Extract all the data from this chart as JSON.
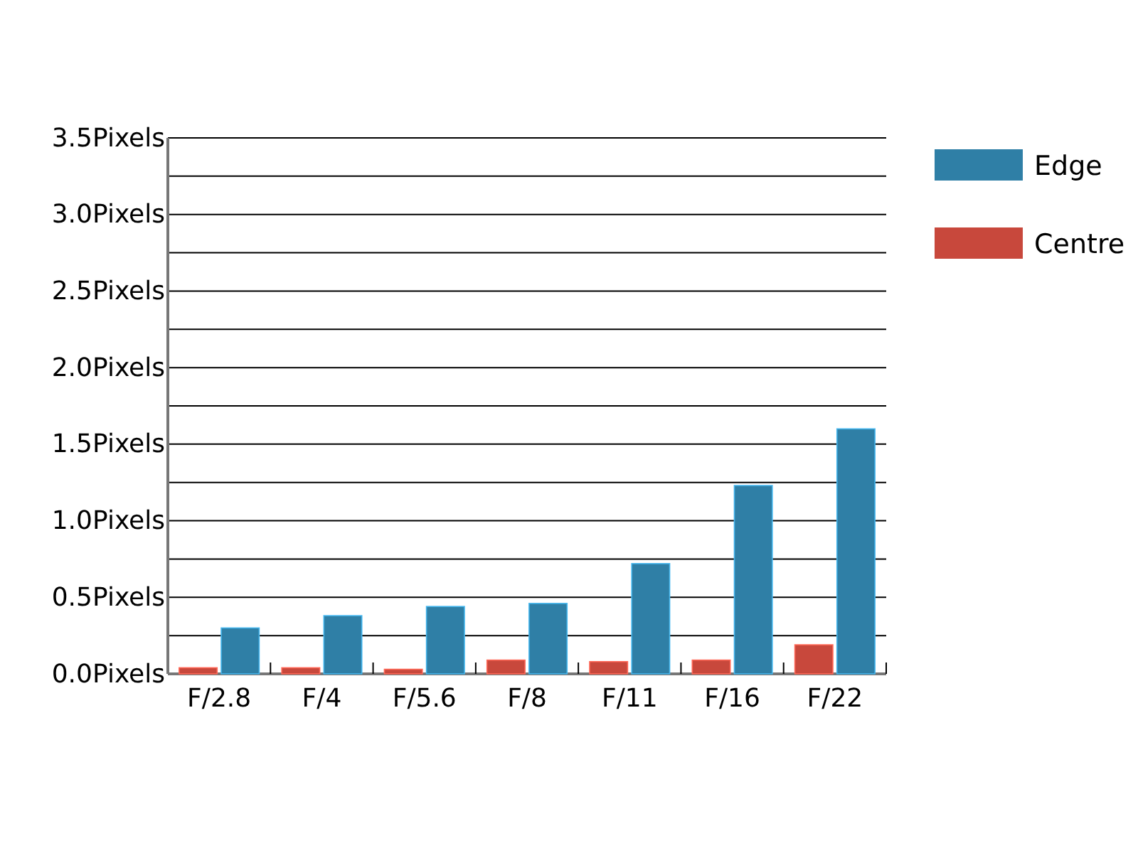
{
  "chart_data": {
    "type": "bar",
    "categories": [
      "F/2.8",
      "F/4",
      "F/5.6",
      "F/8",
      "F/11",
      "F/16",
      "F/22"
    ],
    "series": [
      {
        "name": "Edge",
        "color": "#2f7fa6",
        "values": [
          0.3,
          0.38,
          0.44,
          0.46,
          0.72,
          1.23,
          1.6
        ]
      },
      {
        "name": "Centre",
        "color": "#c8483c",
        "values": [
          0.04,
          0.04,
          0.03,
          0.09,
          0.08,
          0.09,
          0.19
        ]
      }
    ],
    "ylim": [
      0,
      3.5
    ],
    "yticks": [
      {
        "value": 0,
        "label": "0.0Pixels"
      },
      {
        "value": 0.25,
        "label": null
      },
      {
        "value": 0.5,
        "label": "0.5Pixels"
      },
      {
        "value": 0.75,
        "label": null
      },
      {
        "value": 1,
        "label": "1.0Pixels"
      },
      {
        "value": 1.25,
        "label": null
      },
      {
        "value": 1.5,
        "label": "1.5Pixels"
      },
      {
        "value": 1.75,
        "label": null
      },
      {
        "value": 2,
        "label": "2.0Pixels"
      },
      {
        "value": 2.25,
        "label": null
      },
      {
        "value": 2.5,
        "label": "2.5Pixels"
      },
      {
        "value": 2.75,
        "label": null
      },
      {
        "value": 3,
        "label": "3.0Pixels"
      },
      {
        "value": 3.25,
        "label": null
      },
      {
        "value": 3.5,
        "label": "3.5Pixels"
      }
    ],
    "grid": "y",
    "legend": "right"
  }
}
